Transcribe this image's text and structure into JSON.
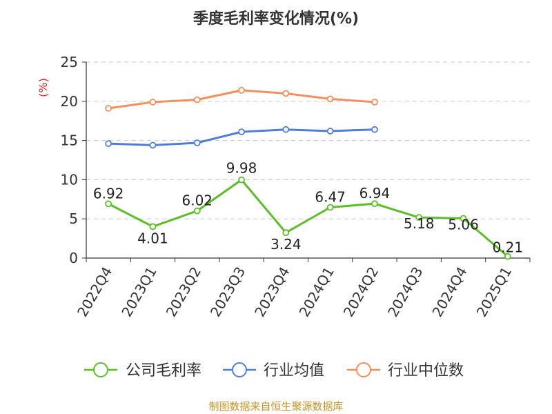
{
  "chart_data": {
    "type": "line",
    "title": "季度毛利率变化情况(%)",
    "ylabel": "(%)",
    "xlabel": "",
    "ylim": [
      0,
      25
    ],
    "yticks": [
      0,
      5,
      10,
      15,
      20,
      25
    ],
    "grid": true,
    "legend_position": "bottom",
    "categories": [
      "2022Q4",
      "2023Q1",
      "2023Q2",
      "2023Q3",
      "2023Q4",
      "2024Q1",
      "2024Q2",
      "2024Q3",
      "2024Q4",
      "2025Q1"
    ],
    "series": [
      {
        "name": "公司毛利率",
        "color": "#5cbd2a",
        "show_labels": true,
        "labels": [
          "6.92",
          "4.01",
          "6.02",
          "9.98",
          "3.24",
          "6.47",
          "6.94",
          "5.18",
          "5.06",
          "0.21"
        ],
        "values": [
          6.92,
          4.01,
          6.02,
          9.98,
          3.24,
          6.47,
          6.94,
          5.18,
          5.06,
          0.21
        ]
      },
      {
        "name": "行业均值",
        "color": "#4e7fd6",
        "show_labels": false,
        "values": [
          14.6,
          14.4,
          14.7,
          16.1,
          16.4,
          16.2,
          16.4,
          null,
          null,
          null
        ]
      },
      {
        "name": "行业中位数",
        "color": "#f48e5c",
        "show_labels": false,
        "values": [
          19.1,
          19.9,
          20.2,
          21.4,
          21.0,
          20.3,
          19.9,
          null,
          null,
          null
        ]
      }
    ],
    "source": "制图数据来自恒生聚源数据库"
  }
}
